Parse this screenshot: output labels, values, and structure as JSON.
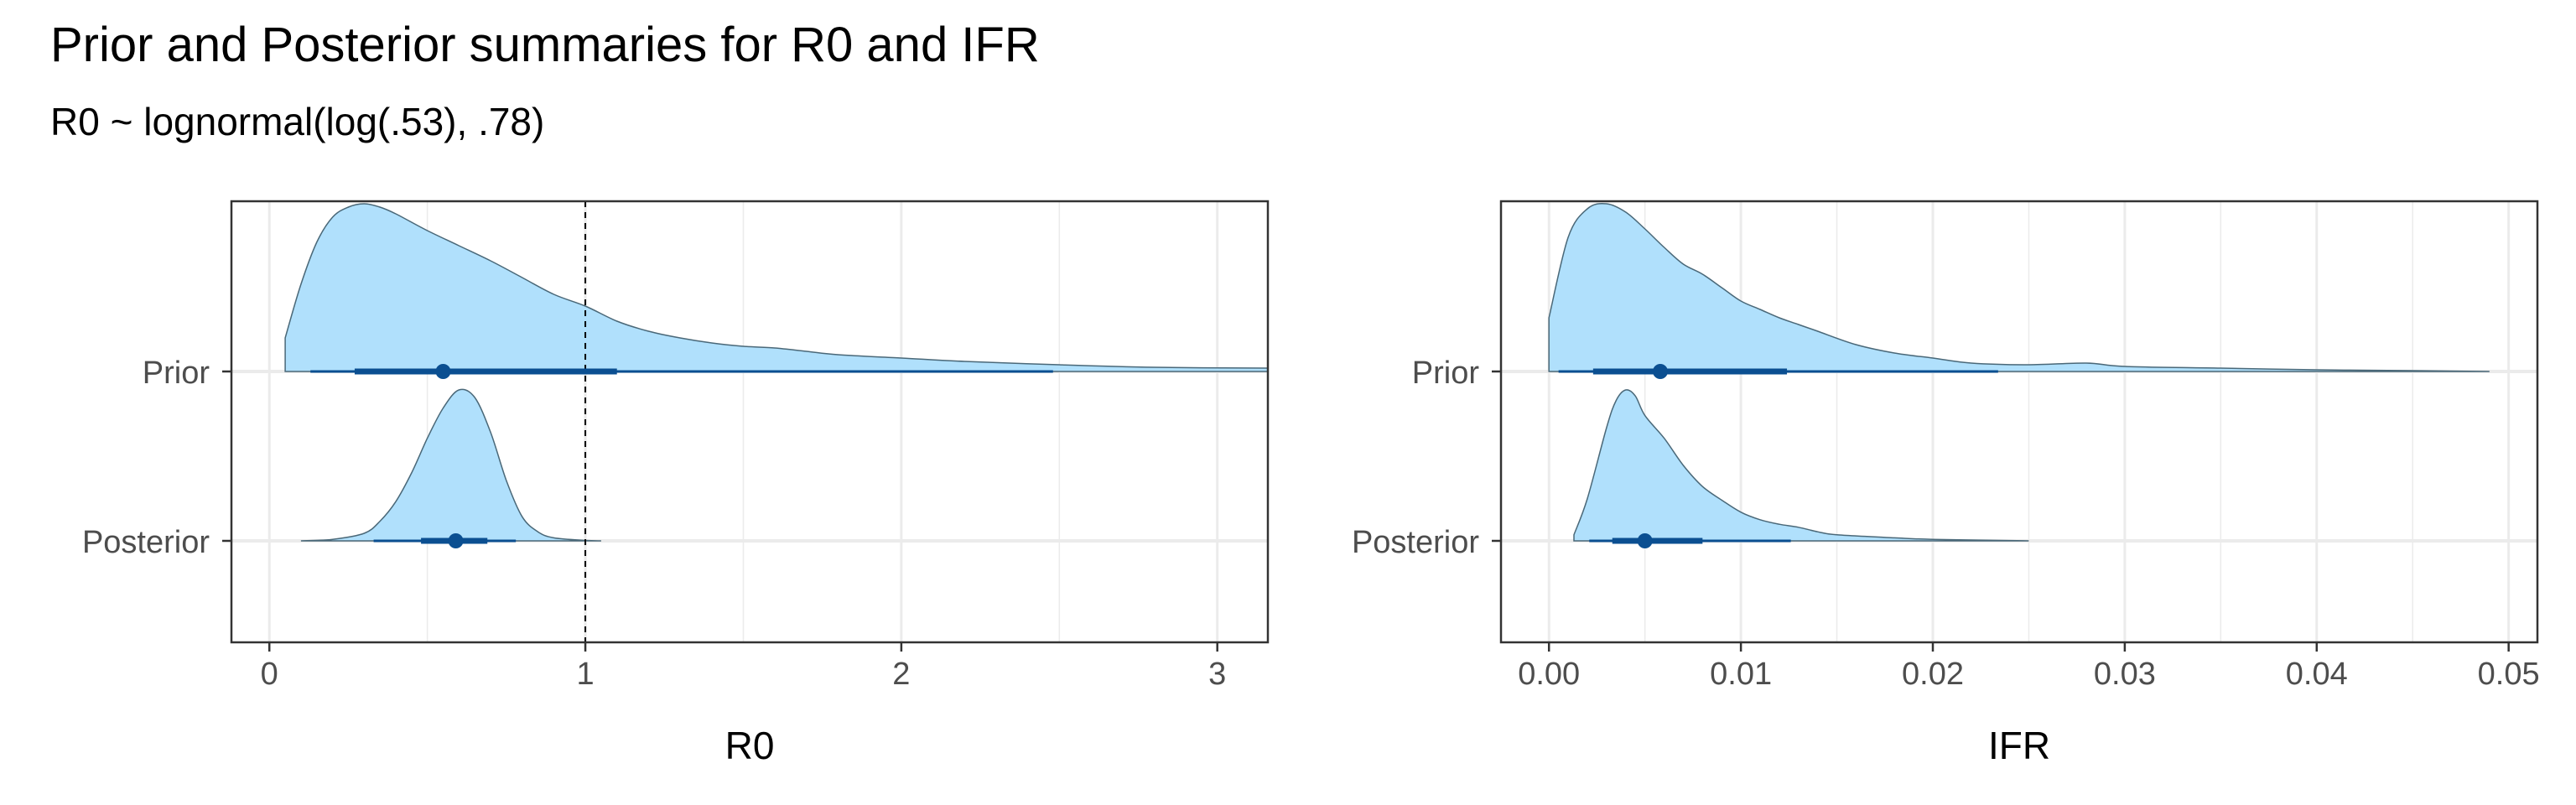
{
  "title": "Prior and Posterior summaries for R0 and IFR",
  "subtitle": "R0 ~ lognormal(log(.53), .78)",
  "colors": {
    "density_fill": "#b0e0fc",
    "density_line": "#4a6878",
    "interval": "#0b4f91",
    "grid": "#ebebeb",
    "panel_border": "#333333",
    "reference_line": "#000000"
  },
  "chart_data": [
    {
      "type": "halfeye",
      "xlabel": "R0",
      "xlim": [
        -0.12,
        3.16
      ],
      "x_ticks": [
        0,
        1,
        2,
        3
      ],
      "x_tick_labels": [
        "0",
        "1",
        "2",
        "3"
      ],
      "categories": [
        "Prior",
        "Posterior"
      ],
      "reference_line": {
        "x": 1,
        "style": "dashed"
      },
      "grid": true,
      "series": [
        {
          "name": "Prior",
          "point": 0.55,
          "interval_66": [
            0.27,
            1.1
          ],
          "interval_95": [
            0.13,
            2.48
          ],
          "density_relative": {
            "x": [
              0.05,
              0.1,
              0.15,
              0.2,
              0.25,
              0.3,
              0.35,
              0.4,
              0.5,
              0.6,
              0.7,
              0.8,
              0.9,
              1.0,
              1.1,
              1.2,
              1.3,
              1.4,
              1.5,
              1.6,
              1.7,
              1.8,
              2.0,
              2.2,
              2.5,
              2.8,
              3.16
            ],
            "y": [
              0.2,
              0.52,
              0.77,
              0.92,
              0.98,
              1.0,
              0.98,
              0.94,
              0.84,
              0.75,
              0.66,
              0.56,
              0.46,
              0.39,
              0.3,
              0.24,
              0.2,
              0.17,
              0.15,
              0.14,
              0.12,
              0.1,
              0.08,
              0.06,
              0.04,
              0.025,
              0.02
            ]
          }
        },
        {
          "name": "Posterior",
          "point": 0.59,
          "interval_66": [
            0.48,
            0.69
          ],
          "interval_95": [
            0.33,
            0.78
          ],
          "density_relative": {
            "x": [
              0.1,
              0.2,
              0.3,
              0.35,
              0.4,
              0.45,
              0.5,
              0.55,
              0.6,
              0.65,
              0.7,
              0.75,
              0.8,
              0.85,
              0.9,
              1.0,
              1.05
            ],
            "y": [
              0.0,
              0.01,
              0.05,
              0.13,
              0.26,
              0.45,
              0.68,
              0.88,
              1.0,
              0.95,
              0.72,
              0.4,
              0.16,
              0.06,
              0.02,
              0.003,
              0.0
            ]
          }
        }
      ]
    },
    {
      "type": "halfeye",
      "xlabel": "IFR",
      "xlim": [
        -0.0025,
        0.0515
      ],
      "x_ticks": [
        0.0,
        0.01,
        0.02,
        0.03,
        0.04,
        0.05
      ],
      "x_tick_labels": [
        "0.00",
        "0.01",
        "0.02",
        "0.03",
        "0.04",
        "0.05"
      ],
      "categories": [
        "Prior",
        "Posterior"
      ],
      "grid": true,
      "series": [
        {
          "name": "Prior",
          "point": 0.0058,
          "interval_66": [
            0.0023,
            0.0124
          ],
          "interval_95": [
            0.0005,
            0.0234
          ],
          "density_relative": {
            "x": [
              0.0,
              0.001,
              0.002,
              0.003,
              0.004,
              0.005,
              0.006,
              0.007,
              0.008,
              0.009,
              0.01,
              0.011,
              0.012,
              0.013,
              0.014,
              0.016,
              0.018,
              0.02,
              0.022,
              0.025,
              0.028,
              0.03,
              0.035,
              0.04,
              0.045,
              0.049
            ],
            "y": [
              0.32,
              0.8,
              0.97,
              1.0,
              0.95,
              0.85,
              0.74,
              0.64,
              0.58,
              0.5,
              0.42,
              0.37,
              0.32,
              0.28,
              0.24,
              0.16,
              0.11,
              0.08,
              0.05,
              0.04,
              0.05,
              0.03,
              0.02,
              0.01,
              0.005,
              0.0
            ]
          }
        },
        {
          "name": "Posterior",
          "point": 0.005,
          "interval_66": [
            0.0033,
            0.008
          ],
          "interval_95": [
            0.0021,
            0.0126
          ],
          "density_relative": {
            "x": [
              0.0013,
              0.002,
              0.003,
              0.0035,
              0.004,
              0.0045,
              0.005,
              0.006,
              0.007,
              0.008,
              0.009,
              0.01,
              0.011,
              0.012,
              0.013,
              0.014,
              0.015,
              0.018,
              0.02,
              0.025
            ],
            "y": [
              0.04,
              0.28,
              0.75,
              0.93,
              1.0,
              0.96,
              0.83,
              0.68,
              0.5,
              0.36,
              0.27,
              0.19,
              0.14,
              0.11,
              0.09,
              0.06,
              0.04,
              0.02,
              0.01,
              0.0
            ]
          }
        }
      ]
    }
  ]
}
